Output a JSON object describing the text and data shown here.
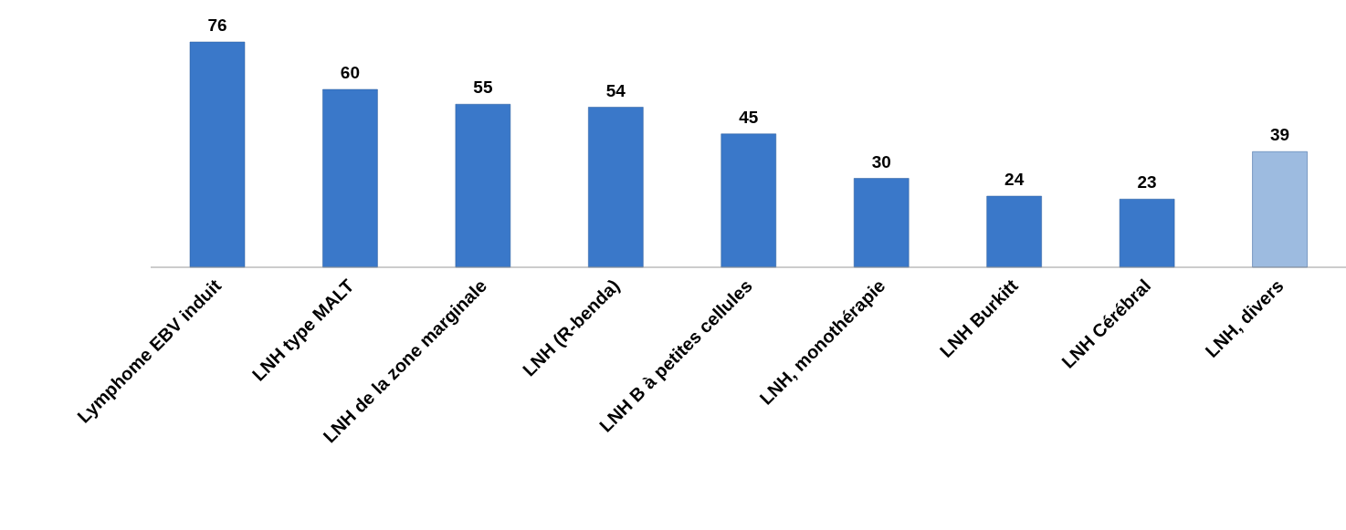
{
  "chart_data": {
    "type": "bar",
    "categories": [
      "Lymphome EBV induit",
      "LNH type MALT",
      "LNH de la zone marginale",
      "LNH (R-benda)",
      "LNH B à petites cellules",
      "LNH, monothérapie",
      "LNH Burkitt",
      "LNH Cérébral",
      "LNH, divers"
    ],
    "values": [
      76,
      60,
      55,
      54,
      45,
      30,
      24,
      23,
      39
    ],
    "colors": [
      "#3a78c9",
      "#3a78c9",
      "#3a78c9",
      "#3a78c9",
      "#3a78c9",
      "#3a78c9",
      "#3a78c9",
      "#3a78c9",
      "#9dbbe0"
    ],
    "data_labels": true
  }
}
